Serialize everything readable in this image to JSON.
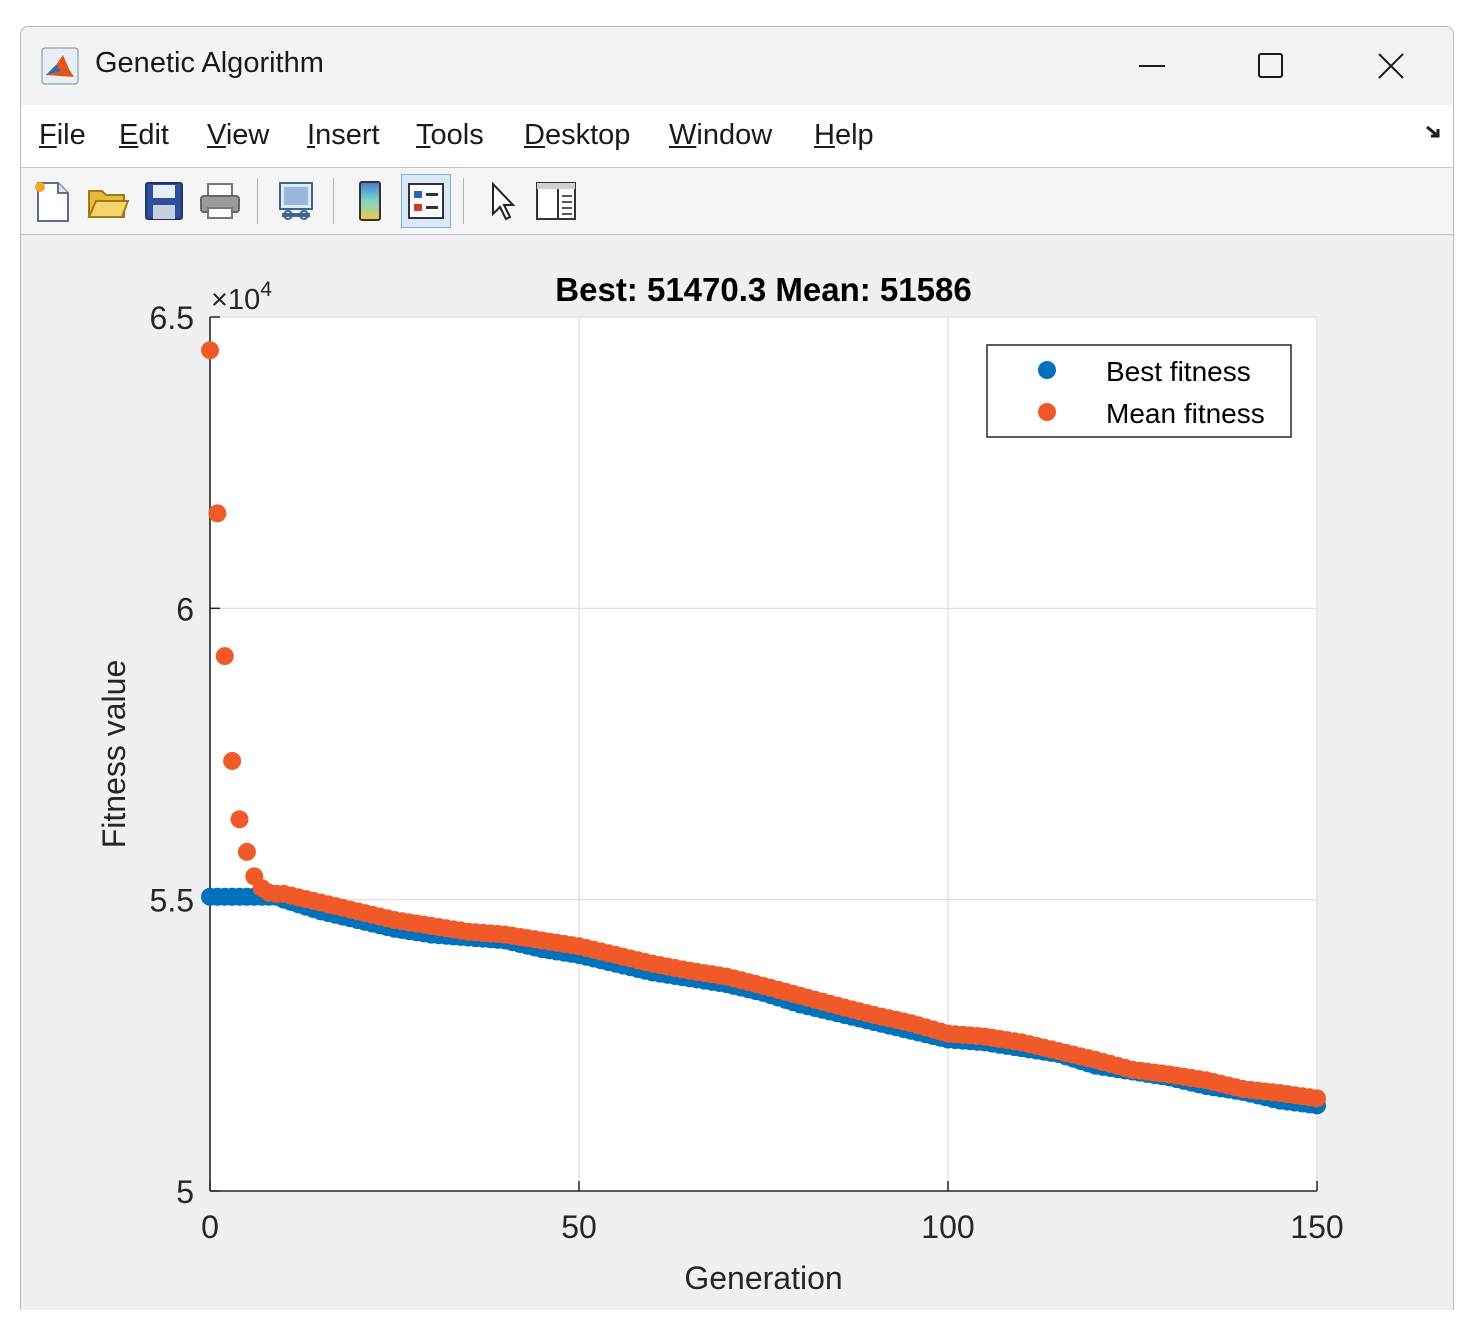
{
  "window": {
    "title": "Genetic Algorithm",
    "app_icon": "matlab-icon"
  },
  "window_controls": [
    "minimize-icon",
    "maximize-icon",
    "close-icon"
  ],
  "menu": [
    "File",
    "Edit",
    "View",
    "Insert",
    "Tools",
    "Desktop",
    "Window",
    "Help"
  ],
  "toolbar_icons": [
    "new-figure-icon",
    "open-file-icon",
    "save-icon",
    "print-icon",
    "link-plot-icon",
    "colorbar-icon",
    "legend-icon",
    "pointer-icon",
    "property-inspector-icon"
  ],
  "colors": {
    "best": "#0072BD",
    "mean": "#F05A28"
  },
  "chart_data": {
    "type": "scatter",
    "title": "Best: 51470.3 Mean: 51586",
    "xlabel": "Generation",
    "ylabel": "Fitness value",
    "exponent_label": "×10",
    "exponent_power": "4",
    "xlim": [
      0,
      150
    ],
    "ylim": [
      5.0,
      6.5
    ],
    "xticks": [
      "0",
      "50",
      "100",
      "150"
    ],
    "yticks": [
      "5",
      "5.5",
      "6",
      "6.5"
    ],
    "grid": true,
    "legend_position": "top-right",
    "x": [
      0,
      1,
      2,
      3,
      4,
      5,
      6,
      7,
      8,
      9,
      10,
      15,
      20,
      25,
      30,
      35,
      40,
      45,
      50,
      55,
      60,
      65,
      70,
      75,
      80,
      85,
      90,
      95,
      100,
      105,
      110,
      115,
      120,
      125,
      130,
      135,
      140,
      145,
      150
    ],
    "series": [
      {
        "name": "Best fitness",
        "values": [
          5.505,
          5.505,
          5.505,
          5.505,
          5.505,
          5.505,
          5.505,
          5.505,
          5.505,
          5.505,
          5.5,
          5.48,
          5.465,
          5.45,
          5.44,
          5.435,
          5.43,
          5.415,
          5.405,
          5.39,
          5.375,
          5.365,
          5.355,
          5.34,
          5.32,
          5.305,
          5.29,
          5.275,
          5.26,
          5.255,
          5.245,
          5.235,
          5.215,
          5.205,
          5.195,
          5.18,
          5.17,
          5.155,
          5.147
        ]
      },
      {
        "name": "Mean fitness",
        "values": [
          6.443,
          6.163,
          5.918,
          5.738,
          5.638,
          5.582,
          5.54,
          5.52,
          5.512,
          5.51,
          5.51,
          5.495,
          5.48,
          5.465,
          5.455,
          5.445,
          5.44,
          5.43,
          5.42,
          5.405,
          5.39,
          5.378,
          5.368,
          5.352,
          5.335,
          5.318,
          5.302,
          5.288,
          5.27,
          5.265,
          5.255,
          5.24,
          5.225,
          5.208,
          5.2,
          5.19,
          5.175,
          5.168,
          5.159
        ]
      }
    ]
  }
}
